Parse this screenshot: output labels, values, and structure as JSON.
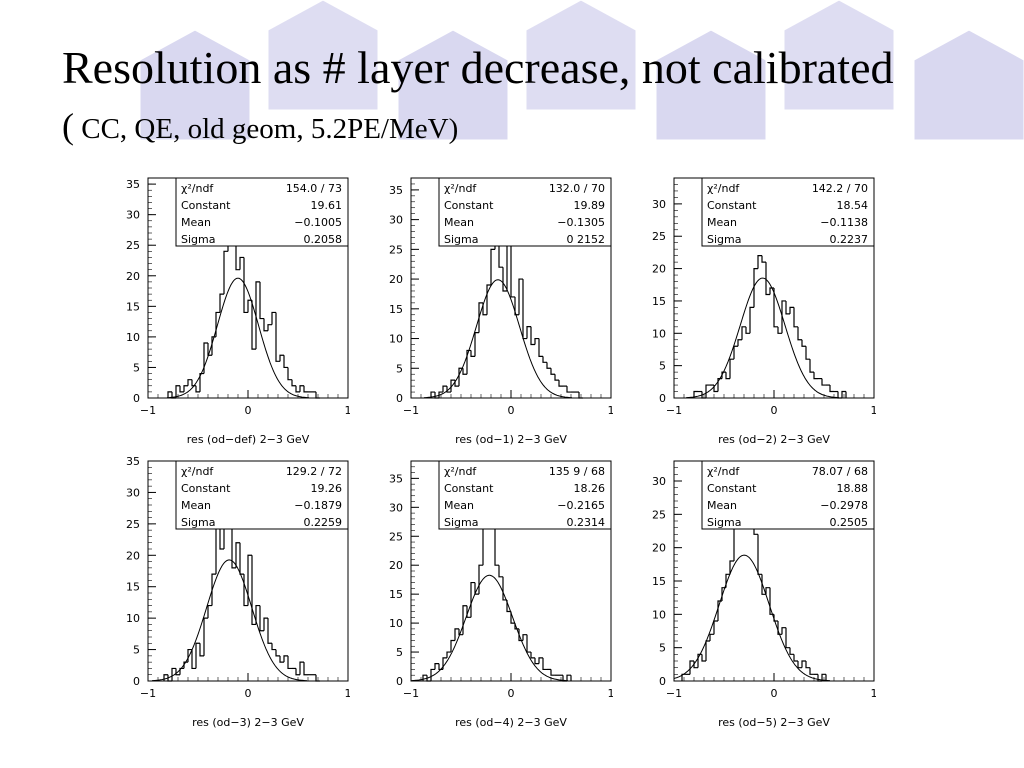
{
  "slide": {
    "title": "Resolution as # layer decrease, not calibrated",
    "subtitle_open": "(",
    "subtitle": " CC, QE, old geom, 5.2PE/MeV)",
    "accent_color": "#d9d8f0"
  },
  "chart_data": [
    {
      "type": "histogram",
      "xlabel": "res (od−def) 2−3 GeV",
      "xlim": [
        -1,
        1
      ],
      "ylim": [
        0,
        36
      ],
      "xticks": [
        -1,
        0,
        1
      ],
      "yticks": [
        0,
        5,
        10,
        15,
        20,
        25,
        30,
        35
      ],
      "stats": {
        "chi2_ndf_label": "χ²/ndf",
        "chi2": "154.0",
        "ndf": "73",
        "constant": "19.61",
        "mean": "−0.1005",
        "sigma": "0.2058"
      },
      "fit": {
        "constant": 19.61,
        "mean": -0.1005,
        "sigma": 0.2058
      },
      "bins_x": [
        -0.78,
        -0.74,
        -0.7,
        -0.66,
        -0.62,
        -0.58,
        -0.54,
        -0.5,
        -0.46,
        -0.42,
        -0.38,
        -0.34,
        -0.3,
        -0.26,
        -0.22,
        -0.18,
        -0.14,
        -0.1,
        -0.06,
        -0.02,
        0.02,
        0.06,
        0.1,
        0.14,
        0.18,
        0.22,
        0.26,
        0.3,
        0.34,
        0.38,
        0.42,
        0.46,
        0.5,
        0.54,
        0.58,
        0.62,
        0.66,
        0.7
      ],
      "bins_y": [
        1,
        0,
        2,
        1,
        2,
        3,
        2,
        1,
        4,
        9,
        7,
        10,
        14,
        17,
        24,
        31,
        27,
        21,
        23,
        14,
        16,
        8,
        19,
        13,
        11,
        12,
        14,
        6,
        7,
        5,
        3,
        2,
        1,
        2,
        1,
        1,
        1,
        0
      ],
      "bin_width": 0.04
    },
    {
      "type": "histogram",
      "xlabel": "res (od−1) 2−3 GeV",
      "xlim": [
        -1,
        1
      ],
      "ylim": [
        0,
        37
      ],
      "xticks": [
        -1,
        0,
        1
      ],
      "yticks": [
        0,
        5,
        10,
        15,
        20,
        25,
        30,
        35
      ],
      "stats": {
        "chi2_ndf_label": "χ²/ndf",
        "chi2": "132.0",
        "ndf": "70",
        "constant": "19.89",
        "mean": "−0.1305",
        "sigma": "0 2152"
      },
      "fit": {
        "constant": 19.89,
        "mean": -0.1305,
        "sigma": 0.2152
      },
      "bins_x": [
        -0.78,
        -0.74,
        -0.7,
        -0.66,
        -0.62,
        -0.58,
        -0.54,
        -0.5,
        -0.46,
        -0.42,
        -0.38,
        -0.34,
        -0.3,
        -0.26,
        -0.22,
        -0.18,
        -0.14,
        -0.1,
        -0.06,
        -0.02,
        0.02,
        0.06,
        0.1,
        0.14,
        0.18,
        0.22,
        0.26,
        0.3,
        0.34,
        0.38,
        0.42,
        0.46,
        0.5,
        0.54,
        0.58,
        0.62,
        0.66,
        0.7
      ],
      "bins_y": [
        1,
        0,
        1,
        2,
        1,
        3,
        2,
        5,
        4,
        8,
        7,
        11,
        16,
        14,
        19,
        25,
        28,
        22,
        18,
        26,
        17,
        14,
        20,
        10,
        12,
        9,
        10,
        7,
        6,
        5,
        4,
        3,
        2,
        2,
        1,
        1,
        1,
        0
      ],
      "bin_width": 0.04
    },
    {
      "type": "histogram",
      "xlabel": "res (od−2) 2−3 GeV",
      "xlim": [
        -1,
        1
      ],
      "ylim": [
        0,
        34
      ],
      "xticks": [
        -1,
        0,
        1
      ],
      "yticks": [
        0,
        5,
        10,
        15,
        20,
        25,
        30
      ],
      "stats": {
        "chi2_ndf_label": "χ²/ndf",
        "chi2": "142.2",
        "ndf": "70",
        "constant": "18.54",
        "mean": "−0.1138",
        "sigma": "0.2237"
      },
      "fit": {
        "constant": 18.54,
        "mean": -0.1138,
        "sigma": 0.2237
      },
      "bins_x": [
        -0.78,
        -0.74,
        -0.7,
        -0.66,
        -0.62,
        -0.58,
        -0.54,
        -0.5,
        -0.46,
        -0.42,
        -0.38,
        -0.34,
        -0.3,
        -0.26,
        -0.22,
        -0.18,
        -0.14,
        -0.1,
        -0.06,
        -0.02,
        0.02,
        0.06,
        0.1,
        0.14,
        0.18,
        0.22,
        0.26,
        0.3,
        0.34,
        0.38,
        0.42,
        0.46,
        0.5,
        0.54,
        0.58,
        0.62,
        0.66,
        0.7
      ],
      "bins_y": [
        1,
        1,
        0,
        2,
        2,
        1,
        3,
        4,
        3,
        6,
        8,
        9,
        11,
        10,
        14,
        20,
        22,
        21,
        16,
        17,
        11,
        10,
        15,
        13,
        14,
        11,
        9,
        8,
        6,
        4,
        3,
        3,
        2,
        2,
        1,
        1,
        0,
        1
      ],
      "bin_width": 0.04
    },
    {
      "type": "histogram",
      "xlabel": "res (od−3) 2−3 GeV",
      "xlim": [
        -1,
        1
      ],
      "ylim": [
        0,
        35
      ],
      "xticks": [
        -1,
        0,
        1
      ],
      "yticks": [
        0,
        5,
        10,
        15,
        20,
        25,
        30,
        35
      ],
      "stats": {
        "chi2_ndf_label": "χ²/ndf",
        "chi2": "129.2",
        "ndf": "72",
        "constant": "19.26",
        "mean": "−0.1879",
        "sigma": "0.2259"
      },
      "fit": {
        "constant": 19.26,
        "mean": -0.1879,
        "sigma": 0.2259
      },
      "bins_x": [
        -0.82,
        -0.78,
        -0.74,
        -0.7,
        -0.66,
        -0.62,
        -0.58,
        -0.54,
        -0.5,
        -0.46,
        -0.42,
        -0.38,
        -0.34,
        -0.3,
        -0.26,
        -0.22,
        -0.18,
        -0.14,
        -0.1,
        -0.06,
        -0.02,
        0.02,
        0.06,
        0.1,
        0.14,
        0.18,
        0.22,
        0.26,
        0.3,
        0.34,
        0.38,
        0.42,
        0.46,
        0.5,
        0.54,
        0.58,
        0.62,
        0.66,
        0.7
      ],
      "bins_y": [
        1,
        0,
        2,
        1,
        2,
        3,
        5,
        2,
        6,
        4,
        10,
        12,
        17,
        30,
        21,
        25,
        31,
        18,
        22,
        17,
        12,
        20,
        9,
        12,
        8,
        10,
        6,
        5,
        4,
        3,
        4,
        2,
        2,
        1,
        3,
        1,
        1,
        1,
        0
      ],
      "bin_width": 0.04
    },
    {
      "type": "histogram",
      "xlabel": "res (od−4) 2−3 GeV",
      "xlim": [
        -1,
        1
      ],
      "ylim": [
        0,
        38
      ],
      "xticks": [
        -1,
        0,
        1
      ],
      "yticks": [
        0,
        5,
        10,
        15,
        20,
        25,
        30,
        35
      ],
      "stats": {
        "chi2_ndf_label": "χ²/ndf",
        "chi2": "135 9",
        "ndf": "68",
        "constant": "18.26",
        "mean": "−0.2165",
        "sigma": "0.2314"
      },
      "fit": {
        "constant": 18.26,
        "mean": -0.2165,
        "sigma": 0.2314
      },
      "bins_x": [
        -0.86,
        -0.82,
        -0.78,
        -0.74,
        -0.7,
        -0.66,
        -0.62,
        -0.58,
        -0.54,
        -0.5,
        -0.46,
        -0.42,
        -0.38,
        -0.34,
        -0.3,
        -0.26,
        -0.22,
        -0.18,
        -0.14,
        -0.1,
        -0.06,
        -0.02,
        0.02,
        0.06,
        0.1,
        0.14,
        0.18,
        0.22,
        0.26,
        0.3,
        0.34,
        0.38,
        0.42,
        0.46,
        0.5,
        0.54,
        0.58
      ],
      "bins_y": [
        1,
        0,
        2,
        3,
        2,
        4,
        5,
        7,
        9,
        8,
        13,
        11,
        17,
        15,
        20,
        31,
        35,
        28,
        20,
        18,
        14,
        12,
        10,
        9,
        7,
        8,
        5,
        4,
        3,
        4,
        2,
        2,
        1,
        1,
        1,
        0,
        1
      ],
      "bin_width": 0.04
    },
    {
      "type": "histogram",
      "xlabel": "res (od−5) 2−3 GeV",
      "xlim": [
        -1,
        1
      ],
      "ylim": [
        0,
        33
      ],
      "xticks": [
        -1,
        0,
        1
      ],
      "yticks": [
        0,
        5,
        10,
        15,
        20,
        25,
        30
      ],
      "stats": {
        "chi2_ndf_label": "χ²/ndf",
        "chi2": "78.07",
        "ndf": "68",
        "constant": "18.88",
        "mean": "−0.2978",
        "sigma": "0.2505"
      },
      "fit": {
        "constant": 18.88,
        "mean": -0.2978,
        "sigma": 0.2505
      },
      "bins_x": [
        -0.9,
        -0.86,
        -0.82,
        -0.78,
        -0.74,
        -0.7,
        -0.66,
        -0.62,
        -0.58,
        -0.54,
        -0.5,
        -0.46,
        -0.42,
        -0.38,
        -0.34,
        -0.3,
        -0.26,
        -0.22,
        -0.18,
        -0.14,
        -0.1,
        -0.06,
        -0.02,
        0.02,
        0.06,
        0.1,
        0.14,
        0.18,
        0.22,
        0.26,
        0.3,
        0.34,
        0.38,
        0.42,
        0.46,
        0.5
      ],
      "bins_y": [
        1,
        1,
        3,
        2,
        4,
        3,
        6,
        7,
        9,
        12,
        14,
        16,
        18,
        23,
        27,
        24,
        28,
        30,
        22,
        16,
        13,
        14,
        10,
        9,
        7,
        8,
        5,
        4,
        3,
        2,
        3,
        2,
        1,
        1,
        0,
        1
      ],
      "bin_width": 0.04
    }
  ]
}
